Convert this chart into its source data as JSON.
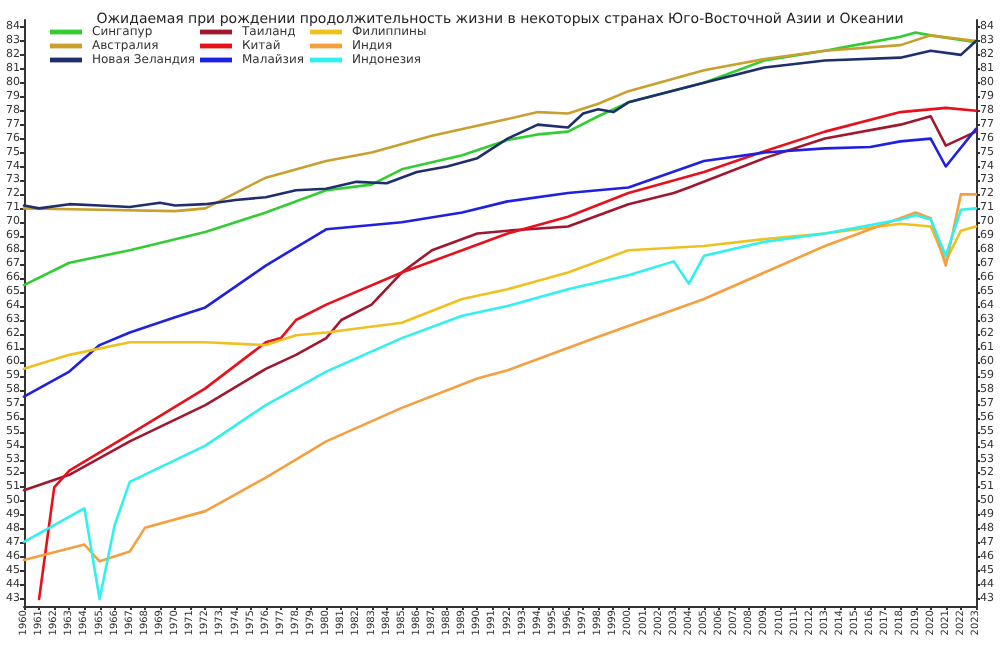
{
  "chart_data": {
    "type": "line",
    "title": "Ожидаемая при рождении продолжительность жизни в некоторых странах Юго-Восточной Азии и Океании",
    "xlim": [
      1960,
      2023
    ],
    "xticks": [
      1960,
      1961,
      1962,
      1963,
      1964,
      1965,
      1966,
      1967,
      1968,
      1969,
      1970,
      1971,
      1972,
      1973,
      1974,
      1975,
      1976,
      1977,
      1978,
      1979,
      1980,
      1981,
      1982,
      1983,
      1984,
      1985,
      1986,
      1987,
      1988,
      1989,
      1990,
      1991,
      1992,
      1993,
      1994,
      1995,
      1996,
      1997,
      1998,
      1999,
      2000,
      2001,
      2002,
      2003,
      2004,
      2005,
      2006,
      2007,
      2008,
      2009,
      2010,
      2011,
      2012,
      2013,
      2014,
      2015,
      2016,
      2017,
      2018,
      2019,
      2020,
      2021,
      2022,
      2023
    ],
    "ylim": [
      42.5,
      84.5
    ],
    "yticks": [
      43,
      44,
      45,
      46,
      47,
      48,
      49,
      50,
      51,
      52,
      53,
      54,
      55,
      56,
      57,
      58,
      59,
      60,
      61,
      62,
      63,
      64,
      65,
      66,
      67,
      68,
      69,
      70,
      71,
      72,
      73,
      74,
      75,
      76,
      77,
      78,
      79,
      80,
      81,
      82,
      83,
      84
    ],
    "y2lim": [
      42.5,
      84.5
    ],
    "y2ticks": [
      43,
      44,
      45,
      46,
      47,
      48,
      49,
      50,
      51,
      52,
      53,
      54,
      55,
      56,
      57,
      58,
      59,
      60,
      61,
      62,
      63,
      64,
      65,
      66,
      67,
      68,
      69,
      70,
      71,
      72,
      73,
      74,
      75,
      76,
      77,
      78,
      79,
      80,
      81,
      82,
      83,
      84
    ],
    "legend": "top left",
    "line_style": "solid",
    "marker": "none",
    "series": [
      {
        "name": "Сингапур",
        "color": "#33cc33",
        "x": [
          1960,
          1963,
          1967,
          1972,
          1976,
          1980,
          1983,
          1985,
          1989,
          1992,
          1994,
          1996,
          1998,
          2000,
          2005,
          2009,
          2013,
          2015,
          2018,
          2019,
          2020,
          2023
        ],
        "values": [
          65.5,
          67.1,
          68.0,
          69.3,
          70.7,
          72.3,
          72.7,
          73.8,
          74.8,
          75.9,
          76.3,
          76.5,
          77.6,
          78.6,
          80.0,
          81.6,
          82.3,
          82.7,
          83.3,
          83.6,
          83.4,
          82.9
        ]
      },
      {
        "name": "Австралия",
        "color": "#c9a02e",
        "x": [
          1960,
          1965,
          1970,
          1972,
          1976,
          1980,
          1983,
          1987,
          1992,
          1994,
          1996,
          1998,
          2000,
          2005,
          2009,
          2013,
          2018,
          2020,
          2023
        ],
        "values": [
          71.0,
          70.9,
          70.8,
          71.0,
          73.2,
          74.4,
          75.0,
          76.2,
          77.4,
          77.9,
          77.8,
          78.5,
          79.4,
          80.9,
          81.7,
          82.3,
          82.7,
          83.4,
          83.0
        ]
      },
      {
        "name": "Новая Зеландия",
        "color": "#1f2f6e",
        "x": [
          1960,
          1961,
          1963,
          1965,
          1967,
          1969,
          1970,
          1972,
          1974,
          1976,
          1978,
          1980,
          1982,
          1984,
          1986,
          1988,
          1990,
          1992,
          1994,
          1996,
          1997,
          1998,
          1999,
          2000,
          2005,
          2009,
          2013,
          2018,
          2020,
          2022,
          2023
        ],
        "values": [
          71.2,
          71.0,
          71.3,
          71.2,
          71.1,
          71.4,
          71.2,
          71.3,
          71.6,
          71.8,
          72.3,
          72.4,
          72.9,
          72.8,
          73.6,
          74.0,
          74.6,
          76.0,
          77.0,
          76.8,
          77.8,
          78.1,
          77.9,
          78.6,
          80.0,
          81.1,
          81.6,
          81.8,
          82.3,
          82.0,
          83.0
        ]
      },
      {
        "name": "Таиланд",
        "color": "#a01830",
        "x": [
          1960,
          1963,
          1967,
          1972,
          1976,
          1978,
          1980,
          1981,
          1983,
          1985,
          1987,
          1990,
          1992,
          1996,
          2000,
          2003,
          2004,
          2009,
          2013,
          2018,
          2020,
          2021,
          2023
        ],
        "values": [
          50.8,
          51.9,
          54.3,
          56.9,
          59.5,
          60.5,
          61.7,
          63.0,
          64.1,
          66.4,
          68.0,
          69.2,
          69.4,
          69.7,
          71.3,
          72.1,
          72.5,
          74.6,
          76.0,
          77.0,
          77.6,
          75.5,
          76.5
        ]
      },
      {
        "name": "Китай",
        "color": "#e8101a",
        "x": [
          1961,
          1962,
          1963,
          1967,
          1972,
          1976,
          1977,
          1978,
          1980,
          1985,
          1989,
          1992,
          1996,
          2000,
          2005,
          2009,
          2013,
          2018,
          2021,
          2023
        ],
        "values": [
          43.0,
          51.0,
          52.2,
          54.8,
          58.1,
          61.4,
          61.7,
          63.0,
          64.1,
          66.4,
          68.0,
          69.2,
          70.4,
          72.1,
          73.6,
          75.1,
          76.5,
          77.9,
          78.2,
          78.0
        ]
      },
      {
        "name": "Малайзия",
        "color": "#2020e0",
        "x": [
          1960,
          1963,
          1965,
          1967,
          1970,
          1972,
          1976,
          1980,
          1985,
          1989,
          1992,
          1996,
          2000,
          2005,
          2009,
          2013,
          2016,
          2018,
          2020,
          2021,
          2023
        ],
        "values": [
          57.5,
          59.3,
          61.2,
          62.1,
          63.2,
          63.9,
          66.9,
          69.5,
          70.0,
          70.7,
          71.5,
          72.1,
          72.5,
          74.4,
          75.0,
          75.3,
          75.4,
          75.8,
          76.0,
          74.0,
          76.7
        ]
      },
      {
        "name": "Филиппины",
        "color": "#f0c020",
        "x": [
          1960,
          1963,
          1967,
          1972,
          1976,
          1978,
          1980,
          1985,
          1989,
          1992,
          1996,
          2000,
          2005,
          2009,
          2013,
          2018,
          2020,
          2021,
          2022,
          2023
        ],
        "values": [
          59.5,
          60.5,
          61.4,
          61.4,
          61.2,
          61.9,
          62.1,
          62.8,
          64.5,
          65.2,
          66.4,
          68.0,
          68.3,
          68.8,
          69.2,
          69.9,
          69.7,
          67.2,
          69.4,
          69.7
        ]
      },
      {
        "name": "Индия",
        "color": "#f4a040",
        "x": [
          1960,
          1964,
          1965,
          1967,
          1968,
          1972,
          1976,
          1980,
          1985,
          1990,
          1992,
          1998,
          2005,
          2009,
          2013,
          2019,
          2020,
          2021,
          2022,
          2023
        ],
        "values": [
          45.8,
          46.9,
          45.7,
          46.4,
          48.1,
          49.3,
          51.7,
          54.3,
          56.7,
          58.8,
          59.4,
          61.8,
          64.5,
          66.4,
          68.3,
          70.7,
          70.3,
          66.9,
          72.0,
          72.0
        ]
      },
      {
        "name": "Индонезия",
        "color": "#30f0f0",
        "x": [
          1960,
          1962,
          1964,
          1965,
          1966,
          1967,
          1972,
          1976,
          1980,
          1985,
          1989,
          1992,
          1996,
          2000,
          2003,
          2004,
          2005,
          2009,
          2013,
          2018,
          2019,
          2020,
          2021,
          2022,
          2023
        ],
        "values": [
          47.1,
          48.3,
          49.5,
          43.0,
          48.3,
          51.4,
          54.0,
          56.9,
          59.3,
          61.7,
          63.3,
          64.0,
          65.2,
          66.2,
          67.2,
          65.6,
          67.6,
          68.6,
          69.2,
          70.2,
          70.5,
          70.2,
          67.6,
          70.9,
          71.0
        ]
      }
    ]
  }
}
